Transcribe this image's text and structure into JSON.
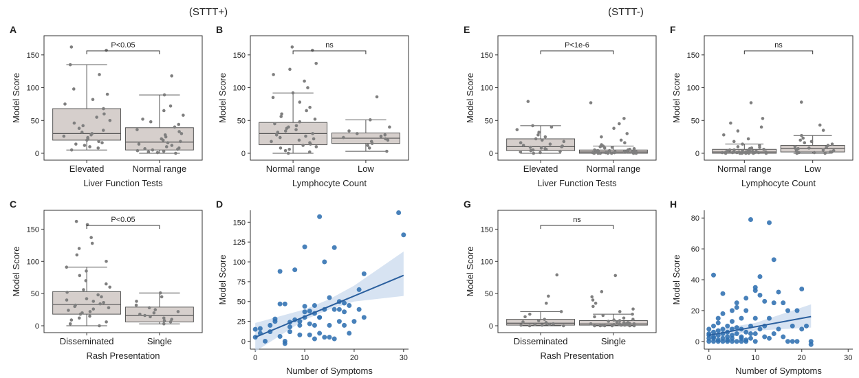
{
  "group_labels": [
    "(STTT+)",
    "(STTT-)"
  ],
  "chart_data": [
    {
      "panel": "A",
      "type": "box",
      "xlabel": "Liver Function Tests",
      "ylabel": "Model Score",
      "categories": [
        "Elevated",
        "Normal range"
      ],
      "ylim": [
        0,
        175
      ],
      "yticks": [
        0,
        50,
        100,
        150
      ],
      "boxes": [
        {
          "whisker_low": 5,
          "q1": 20,
          "median": 30,
          "q3": 68,
          "whisker_high": 135
        },
        {
          "whisker_low": 0,
          "q1": 5,
          "median": 17,
          "q3": 39,
          "whisker_high": 89
        }
      ],
      "points": [
        [
          5,
          8,
          10,
          12,
          14,
          16,
          18,
          20,
          22,
          24,
          26,
          28,
          30,
          32,
          35,
          38,
          42,
          46,
          50,
          55,
          60,
          68,
          75,
          82,
          90,
          98,
          120,
          135,
          157,
          162
        ],
        [
          0,
          1,
          2,
          3,
          4,
          5,
          6,
          7,
          8,
          10,
          12,
          14,
          16,
          18,
          20,
          22,
          25,
          28,
          30,
          33,
          36,
          40,
          44,
          48,
          52,
          58,
          65,
          72,
          89,
          118
        ]
      ],
      "annotation": "P<0.05"
    },
    {
      "panel": "B",
      "type": "box",
      "xlabel": "Lymphocyte Count",
      "ylabel": "Model Score",
      "categories": [
        "Normal range",
        "Low"
      ],
      "ylim": [
        0,
        175
      ],
      "yticks": [
        0,
        50,
        100,
        150
      ],
      "boxes": [
        {
          "whisker_low": 0,
          "q1": 13,
          "median": 30,
          "q3": 47,
          "whisker_high": 92
        },
        {
          "whisker_low": 3,
          "q1": 15,
          "median": 23,
          "q3": 31,
          "whisker_high": 51
        }
      ],
      "points": [
        [
          0,
          2,
          4,
          6,
          8,
          10,
          12,
          14,
          16,
          18,
          20,
          22,
          24,
          26,
          28,
          30,
          32,
          34,
          36,
          38,
          40,
          42,
          45,
          48,
          52,
          56,
          60,
          65,
          70,
          78,
          85,
          92,
          100,
          110,
          120,
          128,
          137,
          157,
          162
        ],
        [
          3,
          8,
          12,
          15,
          18,
          20,
          22,
          24,
          26,
          28,
          30,
          34,
          40,
          51,
          86
        ]
      ],
      "annotation": "ns"
    },
    {
      "panel": "C",
      "type": "box",
      "xlabel": "Rash Presentation",
      "ylabel": "Model Score",
      "categories": [
        "Disseminated",
        "Single"
      ],
      "ylim": [
        0,
        175
      ],
      "yticks": [
        0,
        50,
        100,
        150
      ],
      "boxes": [
        {
          "whisker_low": 0,
          "q1": 18,
          "median": 33,
          "q3": 53,
          "whisker_high": 91
        },
        {
          "whisker_low": 3,
          "q1": 6,
          "median": 16,
          "q3": 29,
          "whisker_high": 51
        }
      ],
      "points": [
        [
          0,
          3,
          6,
          9,
          12,
          15,
          18,
          20,
          22,
          24,
          26,
          28,
          30,
          32,
          34,
          36,
          38,
          40,
          42,
          45,
          48,
          52,
          56,
          60,
          65,
          70,
          78,
          85,
          91,
          100,
          110,
          120,
          128,
          137,
          157,
          162
        ],
        [
          3,
          6,
          8,
          10,
          12,
          14,
          16,
          18,
          20,
          22,
          25,
          28,
          32,
          38,
          45,
          51
        ]
      ],
      "annotation": "P<0.05"
    },
    {
      "panel": "D",
      "type": "scatter",
      "xlabel": "Number of Symptoms",
      "ylabel": "Model Score",
      "xlim": [
        -1,
        31
      ],
      "ylim": [
        -10,
        165
      ],
      "xticks": [
        0,
        10,
        20,
        30
      ],
      "yticks": [
        0,
        25,
        50,
        75,
        100,
        125,
        150
      ],
      "x": [
        0,
        0,
        1,
        1,
        2,
        3,
        3,
        4,
        4,
        5,
        5,
        5,
        6,
        6,
        6,
        7,
        7,
        7,
        8,
        8,
        9,
        9,
        9,
        10,
        10,
        10,
        10,
        11,
        11,
        11,
        12,
        12,
        12,
        12,
        13,
        13,
        13,
        13,
        14,
        14,
        14,
        15,
        15,
        15,
        16,
        16,
        16,
        17,
        17,
        17,
        18,
        18,
        18,
        19,
        19,
        20,
        21,
        21,
        22,
        22,
        29,
        30
      ],
      "y": [
        5,
        15,
        10,
        16,
        0,
        20,
        12,
        28,
        25,
        47,
        6,
        88,
        47,
        0,
        -3,
        24,
        18,
        12,
        27,
        90,
        8,
        25,
        20,
        37,
        44,
        30,
        119,
        8,
        22,
        38,
        35,
        20,
        3,
        45,
        10,
        157,
        30,
        30,
        5,
        40,
        100,
        5,
        20,
        55,
        118,
        40,
        3,
        50,
        25,
        40,
        37,
        48,
        20,
        45,
        10,
        25,
        65,
        40,
        85,
        30,
        162,
        134
      ],
      "regression": {
        "intercept": 5,
        "slope": 2.6
      },
      "ci": {
        "x": [
          0,
          10,
          15,
          20,
          30
        ],
        "lower": [
          -13,
          27,
          40,
          50,
          57
        ],
        "upper": [
          23,
          40,
          53,
          70,
          113
        ]
      }
    },
    {
      "panel": "E",
      "type": "box",
      "xlabel": "Liver Function Tests",
      "ylabel": "Model Score",
      "categories": [
        "Elevated",
        "Normal range"
      ],
      "ylim": [
        0,
        175
      ],
      "yticks": [
        0,
        50,
        100,
        150
      ],
      "boxes": [
        {
          "whisker_low": 0,
          "q1": 4,
          "median": 10,
          "q3": 22,
          "whisker_high": 42
        },
        {
          "whisker_low": 0,
          "q1": 0,
          "median": 2,
          "q3": 5,
          "whisker_high": 11
        }
      ],
      "points": [
        [
          0,
          1,
          2,
          3,
          4,
          5,
          6,
          7,
          8,
          9,
          10,
          11,
          12,
          14,
          16,
          18,
          20,
          22,
          25,
          28,
          32,
          36,
          40,
          42,
          79
        ],
        [
          0,
          0,
          0,
          0,
          0,
          0,
          0,
          1,
          1,
          1,
          1,
          1,
          1,
          2,
          2,
          2,
          2,
          2,
          3,
          3,
          3,
          3,
          4,
          4,
          4,
          5,
          5,
          6,
          7,
          8,
          9,
          10,
          11,
          13,
          16,
          20,
          25,
          30,
          38,
          45,
          53,
          77
        ]
      ],
      "annotation": "P<1e-6"
    },
    {
      "panel": "F",
      "type": "box",
      "xlabel": "Lymphocyte Count",
      "ylabel": "Model Score",
      "categories": [
        "Normal range",
        "Low"
      ],
      "ylim": [
        0,
        175
      ],
      "yticks": [
        0,
        50,
        100,
        150
      ],
      "boxes": [
        {
          "whisker_low": 0,
          "q1": 0,
          "median": 2,
          "q3": 6,
          "whisker_high": 14
        },
        {
          "whisker_low": 0,
          "q1": 2,
          "median": 7,
          "q3": 12,
          "whisker_high": 27
        }
      ],
      "points": [
        [
          0,
          0,
          0,
          0,
          0,
          0,
          0,
          1,
          1,
          1,
          1,
          1,
          1,
          2,
          2,
          2,
          2,
          2,
          3,
          3,
          3,
          3,
          4,
          4,
          4,
          5,
          5,
          6,
          7,
          8,
          9,
          10,
          12,
          14,
          18,
          22,
          28,
          34,
          40,
          46,
          53,
          77
        ],
        [
          0,
          0,
          1,
          1,
          2,
          2,
          3,
          4,
          5,
          6,
          7,
          8,
          9,
          10,
          12,
          14,
          16,
          18,
          20,
          23,
          27,
          35,
          43,
          78
        ]
      ],
      "annotation": "ns"
    },
    {
      "panel": "G",
      "type": "box",
      "xlabel": "Rash Presentation",
      "ylabel": "Model Score",
      "categories": [
        "Disseminated",
        "Single"
      ],
      "ylim": [
        0,
        175
      ],
      "yticks": [
        0,
        50,
        100,
        150
      ],
      "boxes": [
        {
          "whisker_low": 0,
          "q1": 1,
          "median": 4,
          "q3": 10,
          "whisker_high": 22
        },
        {
          "whisker_low": 0,
          "q1": 1,
          "median": 3,
          "q3": 8,
          "whisker_high": 18
        }
      ],
      "points": [
        [
          0,
          0,
          1,
          1,
          2,
          2,
          3,
          4,
          5,
          6,
          8,
          10,
          14,
          18,
          22,
          35,
          46,
          79
        ],
        [
          0,
          0,
          0,
          0,
          0,
          0,
          1,
          1,
          1,
          1,
          1,
          2,
          2,
          2,
          2,
          3,
          3,
          3,
          3,
          4,
          4,
          5,
          5,
          6,
          7,
          8,
          9,
          10,
          12,
          14,
          16,
          18,
          22,
          26,
          30,
          35,
          40,
          45,
          53,
          78
        ]
      ],
      "annotation": "ns"
    },
    {
      "panel": "H",
      "type": "scatter",
      "xlabel": "Number of Symptoms",
      "ylabel": "Model Score",
      "xlim": [
        -1,
        31
      ],
      "ylim": [
        -5,
        85
      ],
      "xticks": [
        0,
        10,
        20,
        30
      ],
      "yticks": [
        0,
        20,
        40,
        60,
        80
      ],
      "x": [
        0,
        0,
        0,
        0,
        0,
        1,
        1,
        1,
        1,
        1,
        1,
        2,
        2,
        2,
        2,
        2,
        3,
        3,
        3,
        3,
        3,
        4,
        4,
        4,
        4,
        4,
        5,
        5,
        5,
        5,
        5,
        6,
        6,
        6,
        6,
        7,
        7,
        7,
        7,
        7,
        8,
        8,
        8,
        8,
        9,
        9,
        9,
        9,
        10,
        10,
        10,
        10,
        10,
        11,
        11,
        11,
        12,
        12,
        12,
        13,
        13,
        13,
        14,
        14,
        14,
        15,
        15,
        16,
        16,
        17,
        17,
        18,
        18,
        19,
        19,
        20,
        20,
        21,
        22,
        22,
        2,
        3,
        5,
        6,
        8
      ],
      "y": [
        0,
        2,
        5,
        8,
        4,
        0,
        3,
        6,
        43,
        10,
        2,
        0,
        4,
        7,
        12,
        1,
        0,
        5,
        8,
        2,
        31,
        0,
        3,
        6,
        10,
        1,
        0,
        4,
        8,
        20,
        2,
        0,
        5,
        9,
        25,
        0,
        3,
        8,
        15,
        2,
        0,
        6,
        20,
        1,
        79,
        10,
        2,
        5,
        33,
        35,
        15,
        5,
        0,
        42,
        30,
        8,
        26,
        10,
        3,
        77,
        15,
        2,
        53,
        25,
        5,
        32,
        8,
        3,
        25,
        0,
        20,
        0,
        10,
        0,
        20,
        34,
        8,
        10,
        0,
        -2,
        15,
        18,
        13,
        22,
        28
      ],
      "regression": {
        "intercept": 4,
        "slope": 0.55
      },
      "ci": {
        "x": [
          0,
          10,
          22
        ],
        "lower": [
          1,
          7,
          9
        ],
        "upper": [
          7,
          12,
          24
        ]
      }
    }
  ]
}
